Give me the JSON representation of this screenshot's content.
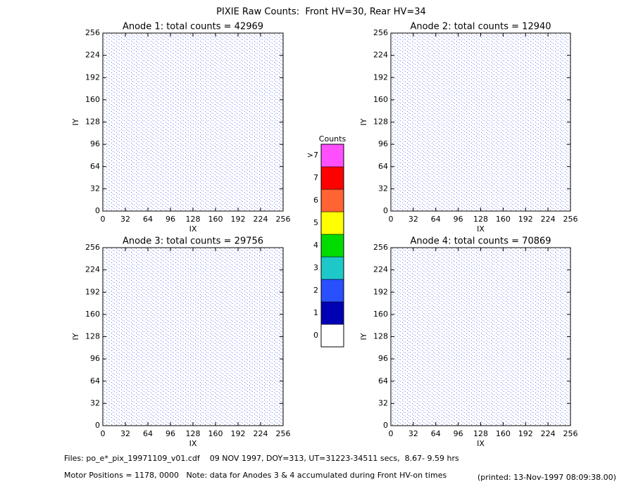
{
  "title": "PIXIE Raw Counts:  Front HV=30, Rear HV=34",
  "chart_data": [
    {
      "type": "heatmap",
      "title": "Anode 1: total counts = 42969",
      "xlabel": "IX",
      "ylabel": "IY",
      "xlim": [
        0,
        256
      ],
      "ylim": [
        0,
        256
      ],
      "xticks": [
        0,
        32,
        64,
        96,
        128,
        160,
        192,
        224,
        256
      ],
      "yticks": [
        0,
        32,
        64,
        96,
        128,
        160,
        192,
        224,
        256
      ]
    },
    {
      "type": "heatmap",
      "title": "Anode 2: total counts = 12940",
      "xlabel": "IX",
      "ylabel": "IY",
      "xlim": [
        0,
        256
      ],
      "ylim": [
        0,
        256
      ],
      "xticks": [
        0,
        32,
        64,
        96,
        128,
        160,
        192,
        224,
        256
      ],
      "yticks": [
        0,
        32,
        64,
        96,
        128,
        160,
        192,
        224,
        256
      ]
    },
    {
      "type": "heatmap",
      "title": "Anode 3: total counts = 29756",
      "xlabel": "IX",
      "ylabel": "IY",
      "xlim": [
        0,
        256
      ],
      "ylim": [
        0,
        256
      ],
      "xticks": [
        0,
        32,
        64,
        96,
        128,
        160,
        192,
        224,
        256
      ],
      "yticks": [
        0,
        32,
        64,
        96,
        128,
        160,
        192,
        224,
        256
      ]
    },
    {
      "type": "heatmap",
      "title": "Anode 4: total counts = 70869",
      "xlabel": "IX",
      "ylabel": "IY",
      "xlim": [
        0,
        256
      ],
      "ylim": [
        0,
        256
      ],
      "xticks": [
        0,
        32,
        64,
        96,
        128,
        160,
        192,
        224,
        256
      ],
      "yticks": [
        0,
        32,
        64,
        96,
        128,
        160,
        192,
        224,
        256
      ]
    }
  ],
  "colorbar": {
    "title": "Counts",
    "ticks": [
      0,
      1,
      2,
      3,
      4,
      5,
      6,
      7,
      {
        "value": 8,
        "label": ">7"
      }
    ],
    "colors": [
      "#ffffff",
      "#0000b4",
      "#2850ff",
      "#1ec8c8",
      "#00dc00",
      "#ffff00",
      "#ff6432",
      "#ff0000",
      "#ff50ff"
    ]
  },
  "footer": {
    "files": "Files: po_e*_pix_19971109_v01.cdf    09 NOV 1997, DOY=313, UT=31223-34511 secs,  8.67- 9.59 hrs",
    "motor": "Motor Positions = 1178, 0000   Note: data for Anodes 3 & 4 accumulated during Front HV-on times",
    "printed": "(printed: 13-Nov-1997 08:09:38.00)"
  }
}
